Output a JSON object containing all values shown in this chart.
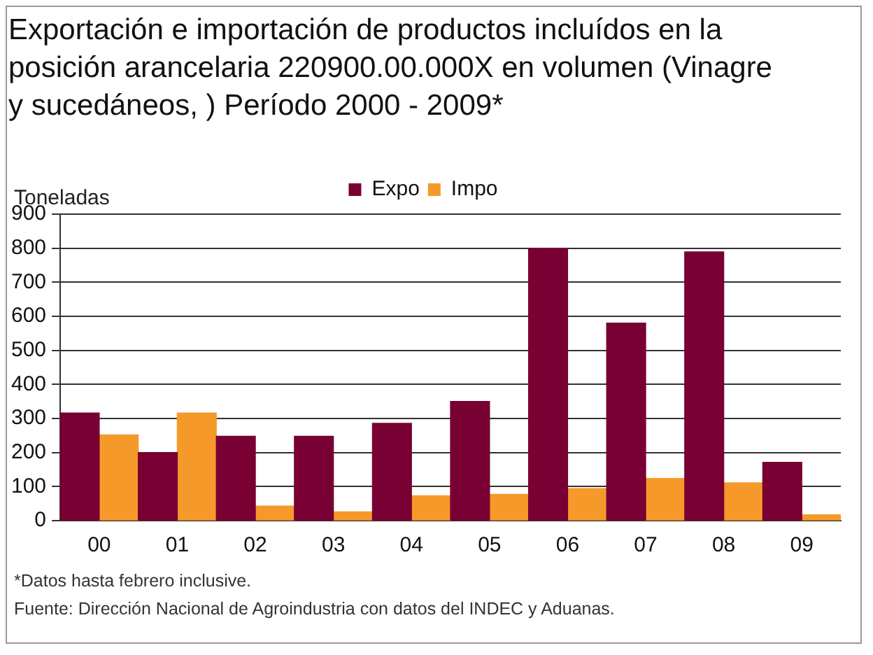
{
  "chart_data": {
    "type": "bar",
    "title": "Exportación e importación de productos incluídos en la posición arancelaria 220900.00.000X en volumen (Vinagre y sucedáneos, ) Período 2000 - 2009*",
    "ylabel": "Toneladas",
    "categories": [
      "00",
      "01",
      "02",
      "03",
      "04",
      "05",
      "06",
      "07",
      "08",
      "09"
    ],
    "series": [
      {
        "name": "Expo",
        "color": "#780032",
        "values": [
          316,
          200,
          248,
          248,
          286,
          350,
          800,
          580,
          789,
          171
        ]
      },
      {
        "name": "Impo",
        "color": "#f59a2a",
        "values": [
          252,
          316,
          43,
          26,
          73,
          77,
          94,
          124,
          111,
          17
        ]
      }
    ],
    "ylim": [
      0,
      900
    ],
    "yticks": [
      0,
      100,
      200,
      300,
      400,
      500,
      600,
      700,
      800,
      900
    ],
    "grid": "y",
    "legend": "top",
    "annotations": [
      "*Datos hasta febrero inclusive.",
      "Fuente: Dirección Nacional de Agroindustria con datos del INDEC y Aduanas."
    ]
  }
}
